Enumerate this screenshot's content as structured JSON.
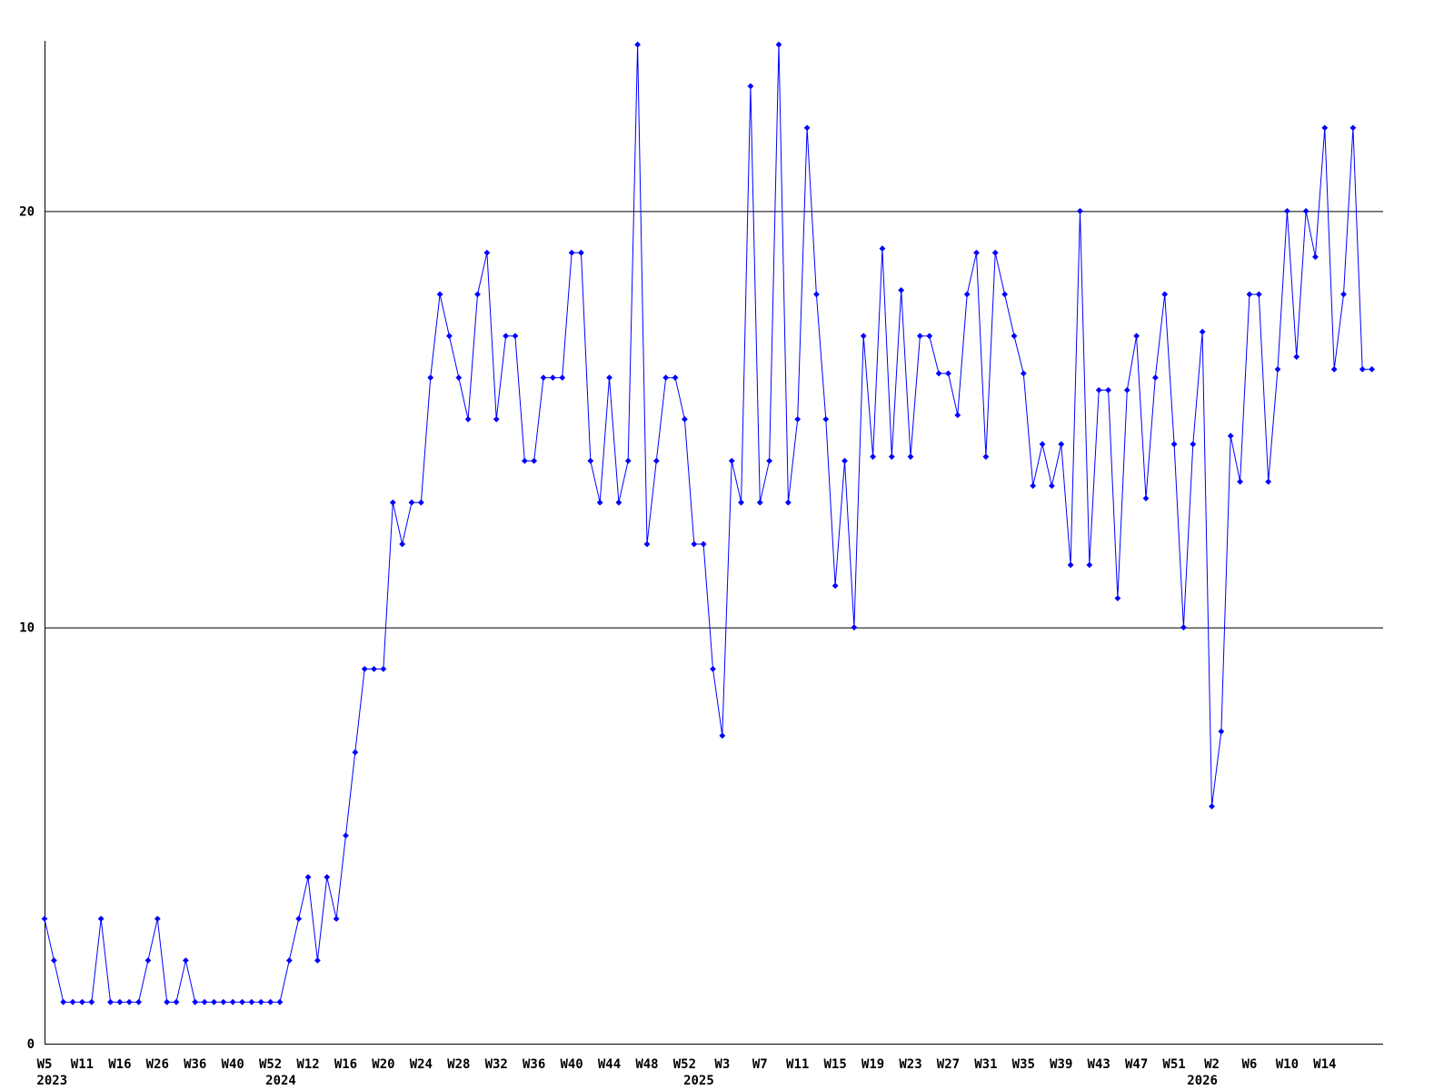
{
  "chart_data": {
    "type": "line",
    "title": "",
    "xlabel": "",
    "ylabel": "",
    "legend": "none",
    "grid": "horizontal-only",
    "line_color": "#0000ff",
    "axis_color": "#000000",
    "background_color": "#ffffff",
    "marker": "diamond",
    "ylim": [
      0,
      24.5
    ],
    "y_ticks": [
      {
        "value": 0,
        "label": "0"
      },
      {
        "value": 10,
        "label": "10"
      },
      {
        "value": 20,
        "label": "20"
      }
    ],
    "gridline_values": [
      10,
      20
    ],
    "x_tick_every": 4,
    "x_tick_labels": [
      "W5",
      "W11",
      "W16",
      "W26",
      "W36",
      "W40",
      "W52",
      "W12",
      "W16",
      "W20",
      "W24",
      "W28",
      "W32",
      "W36",
      "W40",
      "W44",
      "W48",
      "W52",
      "W3",
      "W7",
      "W11",
      "W15",
      "W19",
      "W23",
      "W27",
      "W31",
      "W35",
      "W39",
      "W43",
      "W47",
      "W51",
      "W2",
      "W6",
      "W10",
      "W14"
    ],
    "year_labels": [
      {
        "label": "2023",
        "index": 0.8
      },
      {
        "label": "2024",
        "index": 25.1
      },
      {
        "label": "2025",
        "index": 69.5
      },
      {
        "label": "2026",
        "index": 123.0
      }
    ],
    "values": [
      3,
      2,
      1,
      1,
      1,
      1,
      3,
      1,
      1,
      1,
      1,
      2,
      3,
      1,
      1,
      2,
      1,
      1,
      1,
      1,
      1,
      1,
      1,
      1,
      1,
      1,
      2,
      3,
      4,
      2,
      4,
      3,
      5,
      7,
      9,
      9,
      9,
      13,
      12,
      13,
      13,
      16,
      18,
      17,
      16,
      15,
      18,
      19,
      15,
      17,
      17,
      14,
      14,
      16,
      16,
      16,
      19,
      19,
      14,
      13,
      16,
      13,
      14,
      24,
      12,
      14,
      16,
      16,
      15,
      12,
      12,
      9,
      7.4,
      14,
      13,
      23,
      13,
      14,
      24,
      13,
      15,
      22,
      18,
      15,
      11,
      14,
      10,
      17,
      14.1,
      19.1,
      14.1,
      18.1,
      14.1,
      17,
      17,
      16.1,
      16.1,
      15.1,
      18,
      19,
      14.1,
      19,
      18,
      17,
      16.1,
      13.4,
      14.4,
      13.4,
      14.4,
      11.5,
      20,
      11.5,
      15.7,
      15.7,
      10.7,
      15.7,
      17,
      13.1,
      16,
      18,
      14.4,
      10,
      14.4,
      17.1,
      5.7,
      7.5,
      14.6,
      13.5,
      18,
      18,
      13.5,
      16.2,
      20,
      16.5,
      20,
      18.9,
      22,
      16.2,
      18,
      22,
      16.2,
      16.2
    ]
  }
}
